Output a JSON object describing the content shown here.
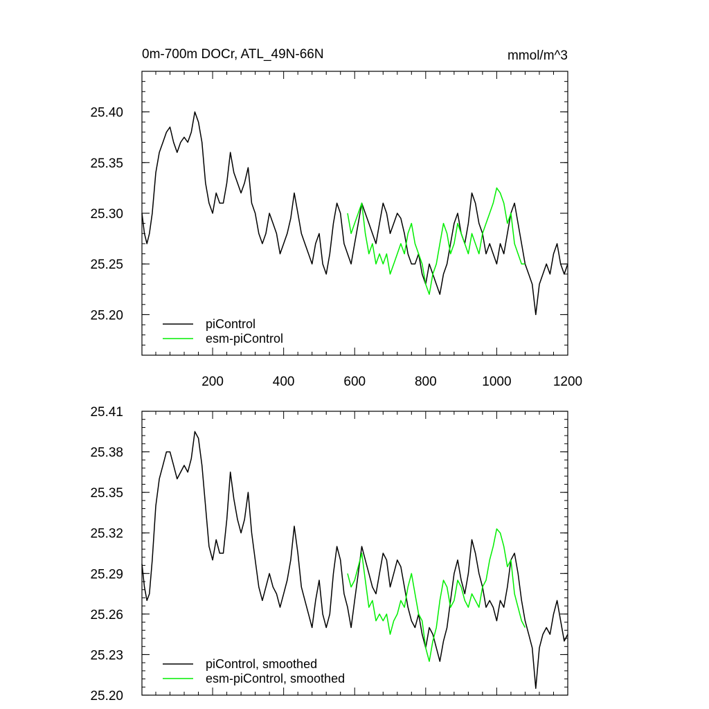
{
  "title_left": "0m-700m DOCr, ATL_49N-66N",
  "title_right": "mmol/m^3",
  "colors": {
    "piControl": "#000000",
    "esm-piControl": "#00ee00",
    "axes": "#000000",
    "background": "#ffffff"
  },
  "chart_data": [
    {
      "type": "line",
      "panel": "top",
      "xlim": [
        1,
        1200
      ],
      "ylim": [
        25.16,
        25.44
      ],
      "x_ticks": [
        200,
        400,
        600,
        800,
        1000,
        1200
      ],
      "y_ticks": [
        25.2,
        25.25,
        25.3,
        25.35,
        25.4
      ],
      "y_tick_labels": [
        "25.20",
        "25.25",
        "25.30",
        "25.35",
        "25.40"
      ],
      "legend": {
        "position": "bottom-left",
        "entries": [
          "piControl",
          "esm-piControl"
        ]
      },
      "series": [
        {
          "name": "piControl",
          "x": [
            1,
            8,
            15,
            22,
            30,
            40,
            50,
            60,
            70,
            80,
            90,
            100,
            110,
            120,
            130,
            140,
            150,
            160,
            170,
            180,
            190,
            200,
            210,
            220,
            230,
            240,
            250,
            260,
            270,
            280,
            290,
            300,
            310,
            320,
            330,
            340,
            350,
            360,
            370,
            380,
            390,
            400,
            410,
            420,
            430,
            440,
            450,
            460,
            470,
            480,
            490,
            500,
            510,
            520,
            530,
            540,
            550,
            560,
            570,
            580,
            590,
            600,
            610,
            620,
            630,
            640,
            650,
            660,
            670,
            680,
            690,
            700,
            710,
            720,
            730,
            740,
            750,
            760,
            770,
            780,
            790,
            800,
            810,
            820,
            830,
            840,
            850,
            860,
            870,
            880,
            890,
            900,
            910,
            920,
            930,
            940,
            950,
            960,
            970,
            980,
            990,
            1000,
            1010,
            1020,
            1030,
            1040,
            1050,
            1060,
            1070,
            1080,
            1090,
            1100,
            1110,
            1120,
            1130,
            1140,
            1150,
            1160,
            1170,
            1180,
            1190,
            1200
          ],
          "values": [
            25.3,
            25.28,
            25.27,
            25.28,
            25.3,
            25.34,
            25.36,
            25.37,
            25.38,
            25.385,
            25.37,
            25.36,
            25.37,
            25.375,
            25.37,
            25.38,
            25.4,
            25.39,
            25.37,
            25.33,
            25.31,
            25.3,
            25.32,
            25.31,
            25.31,
            25.33,
            25.36,
            25.34,
            25.33,
            25.32,
            25.33,
            25.345,
            25.31,
            25.3,
            25.28,
            25.27,
            25.28,
            25.3,
            25.29,
            25.28,
            25.26,
            25.27,
            25.28,
            25.295,
            25.32,
            25.3,
            25.28,
            25.27,
            25.26,
            25.25,
            25.27,
            25.28,
            25.25,
            25.24,
            25.26,
            25.29,
            25.31,
            25.3,
            25.27,
            25.26,
            25.25,
            25.27,
            25.29,
            25.31,
            25.3,
            25.29,
            25.28,
            25.27,
            25.29,
            25.31,
            25.3,
            25.28,
            25.29,
            25.3,
            25.295,
            25.28,
            25.26,
            25.25,
            25.25,
            25.26,
            25.24,
            25.23,
            25.25,
            25.24,
            25.23,
            25.22,
            25.24,
            25.25,
            25.27,
            25.29,
            25.3,
            25.28,
            25.27,
            25.29,
            25.32,
            25.31,
            25.29,
            25.28,
            25.26,
            25.27,
            25.26,
            25.25,
            25.27,
            25.26,
            25.28,
            25.3,
            25.31,
            25.29,
            25.27,
            25.25,
            25.24,
            25.23,
            25.2,
            25.23,
            25.24,
            25.25,
            25.24,
            25.26,
            25.27,
            25.25,
            25.24,
            25.25
          ]
        },
        {
          "name": "esm-piControl",
          "x": [
            580,
            590,
            600,
            610,
            620,
            630,
            640,
            650,
            660,
            670,
            680,
            690,
            700,
            710,
            720,
            730,
            740,
            750,
            760,
            770,
            780,
            790,
            800,
            810,
            820,
            830,
            840,
            850,
            860,
            870,
            880,
            890,
            900,
            910,
            920,
            930,
            940,
            950,
            960,
            970,
            980,
            990,
            1000,
            1010,
            1020,
            1030,
            1040,
            1050,
            1060,
            1070,
            1080
          ],
          "values": [
            25.3,
            25.28,
            25.29,
            25.3,
            25.31,
            25.28,
            25.26,
            25.27,
            25.25,
            25.26,
            25.25,
            25.26,
            25.24,
            25.25,
            25.26,
            25.27,
            25.26,
            25.28,
            25.29,
            25.27,
            25.26,
            25.25,
            25.23,
            25.22,
            25.24,
            25.25,
            25.27,
            25.29,
            25.28,
            25.26,
            25.27,
            25.29,
            25.28,
            25.27,
            25.26,
            25.28,
            25.27,
            25.26,
            25.28,
            25.29,
            25.3,
            25.31,
            25.325,
            25.32,
            25.31,
            25.29,
            25.3,
            25.27,
            25.26,
            25.25,
            25.25
          ]
        }
      ]
    },
    {
      "type": "line",
      "panel": "bottom",
      "xlim": [
        1,
        1200
      ],
      "ylim": [
        25.2,
        25.41
      ],
      "y_ticks": [
        25.2,
        25.23,
        25.26,
        25.29,
        25.32,
        25.35,
        25.38,
        25.41
      ],
      "y_tick_labels": [
        "25.20",
        "25.23",
        "25.26",
        "25.29",
        "25.32",
        "25.35",
        "25.38",
        "25.41"
      ],
      "legend": {
        "position": "bottom-left",
        "entries": [
          "piControl, smoothed",
          "esm-piControl, smoothed"
        ]
      },
      "series": [
        {
          "name": "piControl, smoothed",
          "x": [
            1,
            8,
            15,
            22,
            30,
            40,
            50,
            60,
            70,
            80,
            90,
            100,
            110,
            120,
            130,
            140,
            150,
            160,
            170,
            180,
            190,
            200,
            210,
            220,
            230,
            240,
            250,
            260,
            270,
            280,
            290,
            300,
            310,
            320,
            330,
            340,
            350,
            360,
            370,
            380,
            390,
            400,
            410,
            420,
            430,
            440,
            450,
            460,
            470,
            480,
            490,
            500,
            510,
            520,
            530,
            540,
            550,
            560,
            570,
            580,
            590,
            600,
            610,
            620,
            630,
            640,
            650,
            660,
            670,
            680,
            690,
            700,
            710,
            720,
            730,
            740,
            750,
            760,
            770,
            780,
            790,
            800,
            810,
            820,
            830,
            840,
            850,
            860,
            870,
            880,
            890,
            900,
            910,
            920,
            930,
            940,
            950,
            960,
            970,
            980,
            990,
            1000,
            1010,
            1020,
            1030,
            1040,
            1050,
            1060,
            1070,
            1080,
            1090,
            1100,
            1110,
            1120,
            1130,
            1140,
            1150,
            1160,
            1170,
            1180,
            1190,
            1200
          ],
          "values": [
            25.297,
            25.28,
            25.27,
            25.275,
            25.3,
            25.34,
            25.36,
            25.37,
            25.38,
            25.38,
            25.37,
            25.36,
            25.365,
            25.37,
            25.365,
            25.375,
            25.395,
            25.39,
            25.37,
            25.34,
            25.31,
            25.3,
            25.315,
            25.305,
            25.305,
            25.33,
            25.365,
            25.345,
            25.33,
            25.32,
            25.33,
            25.35,
            25.32,
            25.3,
            25.28,
            25.27,
            25.28,
            25.29,
            25.28,
            25.275,
            25.265,
            25.275,
            25.285,
            25.3,
            25.325,
            25.305,
            25.28,
            25.27,
            25.26,
            25.25,
            25.27,
            25.285,
            25.26,
            25.25,
            25.26,
            25.29,
            25.31,
            25.3,
            25.275,
            25.265,
            25.25,
            25.27,
            25.29,
            25.31,
            25.3,
            25.29,
            25.28,
            25.275,
            25.29,
            25.305,
            25.3,
            25.28,
            25.29,
            25.3,
            25.295,
            25.28,
            25.265,
            25.255,
            25.25,
            25.26,
            25.245,
            25.235,
            25.25,
            25.245,
            25.235,
            25.225,
            25.24,
            25.25,
            25.27,
            25.29,
            25.3,
            25.285,
            25.275,
            25.29,
            25.315,
            25.305,
            25.29,
            25.28,
            25.265,
            25.27,
            25.265,
            25.255,
            25.27,
            25.265,
            25.28,
            25.3,
            25.305,
            25.29,
            25.27,
            25.255,
            25.245,
            25.235,
            25.205,
            25.235,
            25.245,
            25.25,
            25.245,
            25.26,
            25.27,
            25.255,
            25.24,
            25.245
          ]
        },
        {
          "name": "esm-piControl, smoothed",
          "x": [
            580,
            590,
            600,
            610,
            620,
            630,
            640,
            650,
            660,
            670,
            680,
            690,
            700,
            710,
            720,
            730,
            740,
            750,
            760,
            770,
            780,
            790,
            800,
            810,
            820,
            830,
            840,
            850,
            860,
            870,
            880,
            890,
            900,
            910,
            920,
            930,
            940,
            950,
            960,
            970,
            980,
            990,
            1000,
            1010,
            1020,
            1030,
            1040,
            1050,
            1060,
            1070,
            1080
          ],
          "values": [
            25.29,
            25.28,
            25.285,
            25.295,
            25.305,
            25.285,
            25.265,
            25.27,
            25.255,
            25.26,
            25.255,
            25.26,
            25.245,
            25.255,
            25.26,
            25.27,
            25.265,
            25.28,
            25.29,
            25.275,
            25.26,
            25.255,
            25.235,
            25.225,
            25.24,
            25.25,
            25.27,
            25.285,
            25.28,
            25.265,
            25.27,
            25.285,
            25.28,
            25.27,
            25.265,
            25.275,
            25.27,
            25.265,
            25.28,
            25.285,
            25.3,
            25.31,
            25.323,
            25.32,
            25.31,
            25.295,
            25.3,
            25.275,
            25.265,
            25.255,
            25.25
          ]
        }
      ]
    }
  ]
}
